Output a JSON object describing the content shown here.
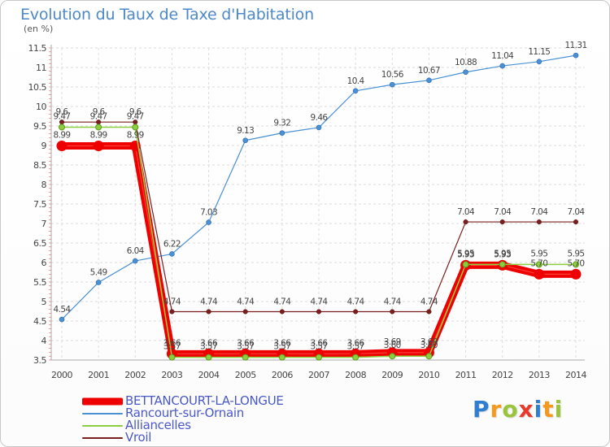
{
  "title": "Evolution du Taux de Taxe d'Habitation",
  "unit": "(en %)",
  "logo": {
    "letters": [
      "P",
      "r",
      "o",
      "x",
      "i",
      "t",
      "i"
    ],
    "colors": [
      "#2f7fd0",
      "#f39a1e",
      "#9ac43c",
      "#e83a2b",
      "#2f7fd0",
      "#f39a1e",
      "#9ac43c"
    ]
  },
  "chart_data": {
    "type": "line",
    "x": [
      "2000",
      "2001",
      "2002",
      "2003",
      "2004",
      "2005",
      "2006",
      "2007",
      "2008",
      "2009",
      "2010",
      "2011",
      "2012",
      "2013",
      "2014"
    ],
    "ylim": [
      3.5,
      11.5
    ],
    "yticks": [
      "3.5",
      "4",
      "4.5",
      "5",
      "5.5",
      "6",
      "6.5",
      "7",
      "7.5",
      "8",
      "8.5",
      "9",
      "9.5",
      "10",
      "10.5",
      "11",
      "11.5"
    ],
    "grid": true,
    "legend_position": "bottom-left",
    "series": [
      {
        "name": "BETTANCOURT-LA-LONGUE",
        "color": "#ee0000",
        "values": [
          8.99,
          8.99,
          8.99,
          3.66,
          3.66,
          3.66,
          3.66,
          3.66,
          3.66,
          3.69,
          3.69,
          5.93,
          5.93,
          5.7,
          5.7
        ],
        "labels": [
          "8.99",
          "8.99",
          "8.99",
          "3.66",
          "3.66",
          "3.66",
          "3.66",
          "3.66",
          "3.66",
          "3.69",
          "3.69",
          "5.93",
          "5.93",
          "5.70",
          "5.70"
        ]
      },
      {
        "name": "Rancourt-sur-Ornain",
        "color": "#4a90d2",
        "values": [
          4.54,
          5.49,
          6.04,
          6.22,
          7.03,
          9.13,
          9.32,
          9.46,
          10.4,
          10.56,
          10.67,
          10.88,
          11.04,
          11.15,
          11.31
        ],
        "labels": [
          "4.54",
          "5.49",
          "6.04",
          "6.22",
          "7.03",
          "9.13",
          "9.32",
          "9.46",
          "10.4",
          "10.56",
          "10.67",
          "10.88",
          "11.04",
          "11.15",
          "11.31"
        ]
      },
      {
        "name": "Alliancelles",
        "color": "#8ccf3e",
        "values": [
          9.47,
          9.47,
          9.47,
          3.57,
          3.57,
          3.57,
          3.57,
          3.57,
          3.57,
          3.6,
          3.6,
          5.95,
          5.95,
          5.95,
          5.95
        ],
        "labels": [
          "9.47",
          "9.47",
          "9.47",
          "3.57",
          "3.57",
          "3.57",
          "3.57",
          "3.57",
          "3.57",
          "3.60",
          "3.60",
          "5.95",
          "5.95",
          "5.95",
          "5.95"
        ]
      },
      {
        "name": "Vroil",
        "color": "#7a1f1f",
        "values": [
          9.6,
          9.6,
          9.6,
          4.74,
          4.74,
          4.74,
          4.74,
          4.74,
          4.74,
          4.74,
          4.74,
          7.04,
          7.04,
          7.04,
          7.04
        ],
        "labels": [
          "9.6",
          "9.6",
          "9.6",
          "4.74",
          "4.74",
          "4.74",
          "4.74",
          "4.74",
          "4.74",
          "4.74",
          "4.74",
          "7.04",
          "7.04",
          "7.04",
          "7.04"
        ]
      }
    ]
  }
}
